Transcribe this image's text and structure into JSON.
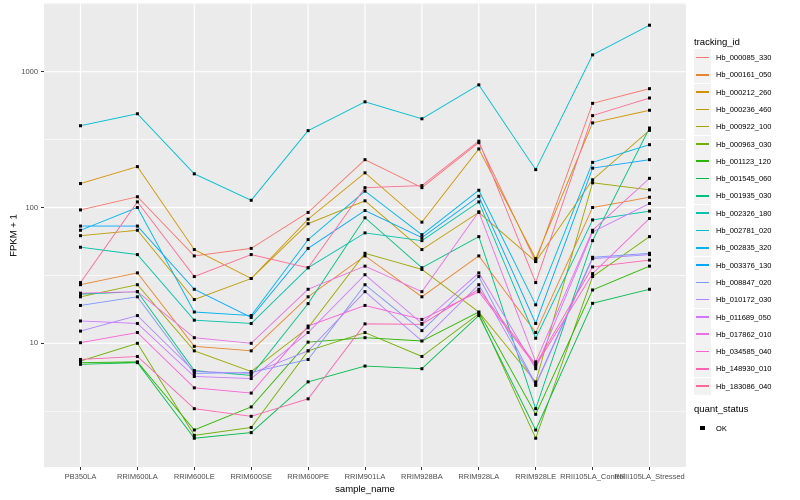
{
  "figure": {
    "x_axis_title": "sample_name",
    "y_axis_title": "FPKM + 1"
  },
  "legend": {
    "tracking_title": "tracking_id",
    "quant_title": "quant_status",
    "quant_items": [
      {
        "label": "OK",
        "shape": "black-square"
      }
    ]
  },
  "chart_data": {
    "type": "line",
    "title": "",
    "xlabel": "sample_name",
    "ylabel": "FPKM + 1",
    "y_scale": "log10",
    "ylim": [
      1.25,
      3200
    ],
    "grid": true,
    "legend_position": "right",
    "panel_bg": "#EBEBEB",
    "grid_color": "#FFFFFF",
    "point_shape": "black-square",
    "y_ticks": [
      {
        "value": 10,
        "label": "10"
      },
      {
        "value": 100,
        "label": "100"
      },
      {
        "value": 1000,
        "label": "1000"
      }
    ],
    "y_minor_ticks": [
      3.16,
      31.6,
      316,
      3162
    ],
    "categories": [
      "PB350LA",
      "RRIM600LA",
      "RRIM600LE",
      "RRIM600SE",
      "RRIM600PE",
      "RRIM901LA",
      "RRIM928BA",
      "RRIM928LA",
      "RRIM928LE",
      "RRII105LA_Control",
      "RRII105LA_Stressed"
    ],
    "series": [
      {
        "name": "Hb_000085_330",
        "color": "#F8766D",
        "values": [
          96,
          120,
          44,
          50,
          92,
          225,
          140,
          300,
          40,
          585,
          750
        ]
      },
      {
        "name": "Hb_000161_050",
        "color": "#E9842C",
        "values": [
          27,
          33,
          9.5,
          8.8,
          22,
          44,
          22,
          44,
          12,
          100,
          119
        ]
      },
      {
        "name": "Hb_000212_260",
        "color": "#D39200",
        "values": [
          150,
          200,
          49,
          30,
          82,
          180,
          78,
          270,
          42,
          420,
          520
        ]
      },
      {
        "name": "Hb_000236_460",
        "color": "#BC9D00",
        "values": [
          62,
          68,
          21,
          30,
          76,
          112,
          49,
          92,
          40,
          160,
          370
        ]
      },
      {
        "name": "Hb_000922_100",
        "color": "#9DA700",
        "values": [
          22,
          27,
          8.8,
          6.2,
          13,
          46,
          35,
          17,
          5.2,
          152,
          135
        ]
      },
      {
        "name": "Hb_000963_030",
        "color": "#6FB000",
        "values": [
          7.4,
          10,
          2.1,
          2.4,
          8.8,
          12,
          8,
          16.5,
          2.0,
          31,
          61
        ]
      },
      {
        "name": "Hb_001123_120",
        "color": "#2CB600",
        "values": [
          7.2,
          7.3,
          2.3,
          3.4,
          10.2,
          11,
          10.4,
          17,
          3.0,
          24.7,
          37
        ]
      },
      {
        "name": "Hb_001545_060",
        "color": "#00BB4B",
        "values": [
          7.0,
          7.2,
          2.0,
          2.2,
          5.2,
          6.8,
          6.5,
          16,
          2.3,
          19.7,
          25
        ]
      },
      {
        "name": "Hb_001935_030",
        "color": "#00C081",
        "values": [
          23,
          24,
          6.3,
          5.8,
          19.6,
          84,
          36,
          61,
          3.3,
          57,
          385
        ]
      },
      {
        "name": "Hb_002326_180",
        "color": "#00C1AB",
        "values": [
          51,
          45,
          14.8,
          14,
          36,
          65,
          57,
          110,
          10.9,
          81,
          94
        ]
      },
      {
        "name": "Hb_002781_020",
        "color": "#00BDD2",
        "values": [
          400,
          490,
          177,
          113,
          368,
          600,
          450,
          800,
          190,
          1330,
          2200
        ]
      },
      {
        "name": "Hb_002835_320",
        "color": "#00B4EF",
        "values": [
          68,
          100,
          17,
          16,
          58,
          132,
          63,
          134,
          19.2,
          215,
          290
        ]
      },
      {
        "name": "Hb_003376_130",
        "color": "#00A6FF",
        "values": [
          73,
          73,
          25,
          15.5,
          50,
          95,
          60,
          121,
          14,
          195,
          225
        ]
      },
      {
        "name": "Hb_008847_020",
        "color": "#7E96FF",
        "values": [
          19,
          22,
          6.0,
          6.1,
          7.6,
          27,
          12.4,
          31,
          5.0,
          43,
          46
        ]
      },
      {
        "name": "Hb_010172_030",
        "color": "#AE87FF",
        "values": [
          12.3,
          16,
          6.2,
          6.0,
          8.8,
          24,
          10.4,
          27,
          4.9,
          42,
          45
        ]
      },
      {
        "name": "Hb_011689_050",
        "color": "#CF78FF",
        "values": [
          14.6,
          14,
          5.7,
          5.5,
          12,
          32,
          14,
          33,
          6.5,
          66,
          107
        ]
      },
      {
        "name": "Hb_017862_010",
        "color": "#EA6FE4",
        "values": [
          23.4,
          24,
          11,
          10,
          25,
          37,
          24,
          93,
          7.3,
          68,
          164
        ]
      },
      {
        "name": "Hb_034585_040",
        "color": "#FB61D7",
        "values": [
          10.1,
          12,
          4.7,
          4.3,
          13.4,
          19,
          15,
          24,
          6.8,
          32.6,
          83
        ]
      },
      {
        "name": "Hb_148930_010",
        "color": "#FF64B0",
        "values": [
          7.6,
          8,
          3.3,
          2.9,
          3.9,
          13.9,
          13.8,
          25,
          7.0,
          36.5,
          41
        ]
      },
      {
        "name": "Hb_183086_040",
        "color": "#FF6B94",
        "values": [
          28,
          110,
          31,
          45,
          36,
          140,
          145,
          308,
          28,
          475,
          640
        ]
      }
    ]
  }
}
